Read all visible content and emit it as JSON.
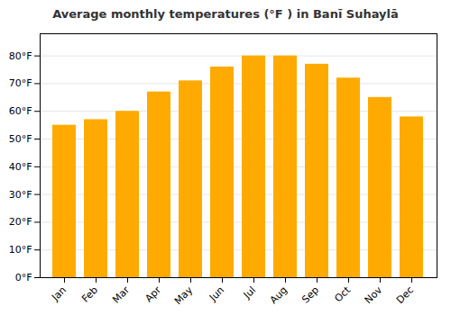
{
  "chart_data": {
    "type": "bar",
    "title": "Average monthly temperatures (°F ) in Banī Suhaylā",
    "categories": [
      "Jan",
      "Feb",
      "Mar",
      "Apr",
      "May",
      "Jun",
      "Jul",
      "Aug",
      "Sep",
      "Oct",
      "Nov",
      "Dec"
    ],
    "values": [
      55,
      57,
      60,
      67,
      71,
      76,
      80,
      80,
      77,
      72,
      65,
      58
    ],
    "color": "#FFAA00",
    "ylim": [
      0,
      88
    ],
    "yticks": [
      {
        "value": 0,
        "label": "0°F"
      },
      {
        "value": 10,
        "label": "10°F"
      },
      {
        "value": 20,
        "label": "20°F"
      },
      {
        "value": 30,
        "label": "30°F"
      },
      {
        "value": 40,
        "label": "40°F"
      },
      {
        "value": 50,
        "label": "50°F"
      },
      {
        "value": 60,
        "label": "60°F"
      },
      {
        "value": 70,
        "label": "70°F"
      },
      {
        "value": 80,
        "label": "80°F"
      }
    ],
    "grid": true
  }
}
